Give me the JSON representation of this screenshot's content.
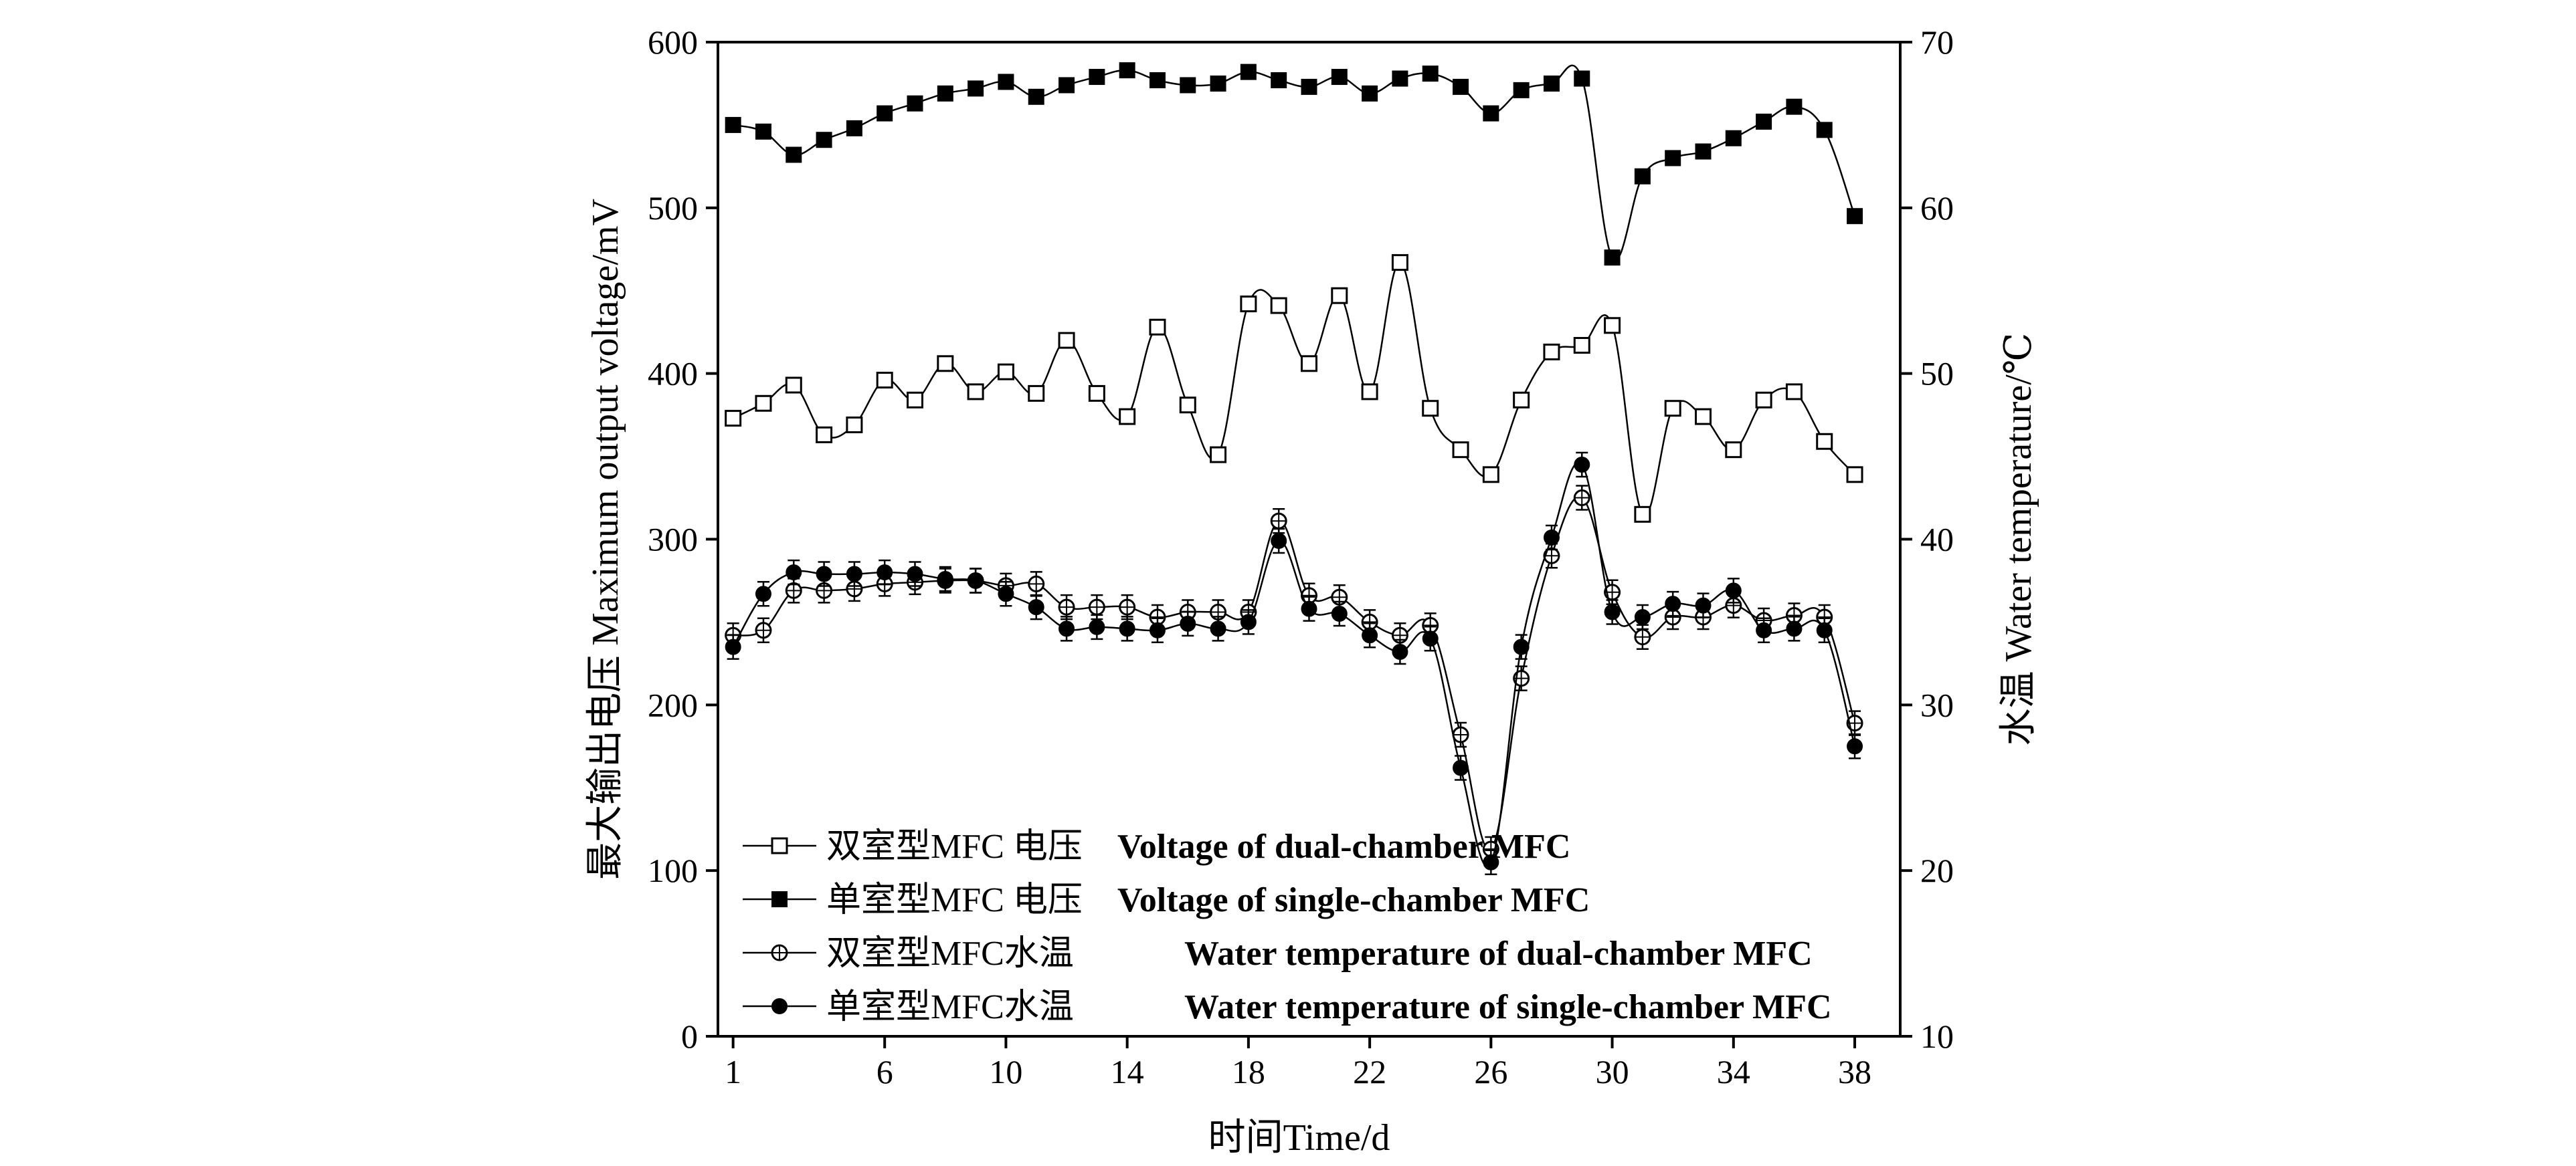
{
  "chart_data": {
    "type": "line",
    "x_axis": {
      "label": "时间Time/d",
      "range": [
        0.5,
        39.5
      ],
      "ticks": [
        1,
        6,
        10,
        14,
        18,
        22,
        26,
        30,
        34,
        38
      ]
    },
    "y_left": {
      "label": "最大输出电压 Maximum output voltage/mV",
      "range": [
        0,
        600
      ],
      "ticks": [
        0,
        100,
        200,
        300,
        400,
        500,
        600
      ]
    },
    "y_right": {
      "label": "水温 Water temperature/℃",
      "range": [
        10,
        70
      ],
      "ticks": [
        10,
        20,
        30,
        40,
        50,
        60,
        70
      ]
    },
    "series": [
      {
        "name": "双室型MFC 电压 Voltage of dual-chamber MFC",
        "axis": "left",
        "marker": "open-square",
        "x": [
          1,
          2,
          3,
          4,
          5,
          6,
          7,
          8,
          9,
          10,
          11,
          12,
          13,
          14,
          15,
          16,
          17,
          18,
          19,
          20,
          21,
          22,
          23,
          24,
          25,
          26,
          27,
          28,
          29,
          30,
          31,
          32,
          33,
          34,
          35,
          36,
          37,
          38
        ],
        "values": [
          373,
          382,
          393,
          363,
          369,
          396,
          384,
          406,
          389,
          401,
          388,
          420,
          388,
          374,
          428,
          381,
          351,
          442,
          441,
          406,
          447,
          389,
          467,
          379,
          354,
          339,
          384,
          413,
          417,
          429,
          315,
          379,
          374,
          354,
          384,
          389,
          359,
          339
        ]
      },
      {
        "name": "单室型MFC 电压 Voltage of single-chamber MFC",
        "axis": "left",
        "marker": "filled-square",
        "x": [
          1,
          2,
          3,
          4,
          5,
          6,
          7,
          8,
          9,
          10,
          11,
          12,
          13,
          14,
          15,
          16,
          17,
          18,
          19,
          20,
          21,
          22,
          23,
          24,
          25,
          26,
          27,
          28,
          29,
          30,
          31,
          32,
          33,
          34,
          35,
          36,
          37,
          38
        ],
        "values": [
          550,
          546,
          532,
          541,
          548,
          557,
          563,
          569,
          572,
          576,
          567,
          574,
          579,
          583,
          577,
          574,
          575,
          582,
          577,
          573,
          579,
          569,
          578,
          581,
          573,
          557,
          571,
          575,
          578,
          470,
          519,
          530,
          534,
          542,
          552,
          561,
          547,
          495
        ]
      },
      {
        "name": "双室型MFC水温 Water temperature of dual-chamber MFC",
        "axis": "right",
        "marker": "open-circle-cross",
        "x": [
          1,
          2,
          3,
          4,
          5,
          6,
          7,
          8,
          9,
          10,
          11,
          12,
          13,
          14,
          15,
          16,
          17,
          18,
          19,
          20,
          21,
          22,
          23,
          24,
          25,
          26,
          27,
          28,
          29,
          30,
          31,
          32,
          33,
          34,
          35,
          36,
          37,
          38
        ],
        "values": [
          34.2,
          34.5,
          36.9,
          36.9,
          37.0,
          37.3,
          37.4,
          37.5,
          37.5,
          37.2,
          37.3,
          35.9,
          35.9,
          35.9,
          35.3,
          35.6,
          35.6,
          35.6,
          41.1,
          36.6,
          36.5,
          35.0,
          34.2,
          34.8,
          28.2,
          21.3,
          31.6,
          39.0,
          42.5,
          36.8,
          34.1,
          35.3,
          35.3,
          36.0,
          35.1,
          35.4,
          35.3,
          28.9
        ]
      },
      {
        "name": "单室型MFC水温 Water temperature of single-chamber MFC",
        "axis": "right",
        "marker": "filled-circle",
        "x": [
          1,
          2,
          3,
          4,
          5,
          6,
          7,
          8,
          9,
          10,
          11,
          12,
          13,
          14,
          15,
          16,
          17,
          18,
          19,
          20,
          21,
          22,
          23,
          24,
          25,
          26,
          27,
          28,
          29,
          30,
          31,
          32,
          33,
          34,
          35,
          36,
          37,
          38
        ],
        "values": [
          33.5,
          36.7,
          38.0,
          37.9,
          37.9,
          38.0,
          37.9,
          37.6,
          37.5,
          36.7,
          35.9,
          34.6,
          34.7,
          34.6,
          34.5,
          34.9,
          34.6,
          35.0,
          39.9,
          35.8,
          35.5,
          34.2,
          33.2,
          34.0,
          26.2,
          20.5,
          33.5,
          40.1,
          44.5,
          35.6,
          35.3,
          36.1,
          36.0,
          36.9,
          34.5,
          34.6,
          34.5,
          27.5
        ]
      }
    ],
    "legend": {
      "placement": "lower-left",
      "entries": [
        {
          "zh": "双室型MFC 电压",
          "en": "Voltage of dual-chamber MFC",
          "marker": "open-square"
        },
        {
          "zh": "单室型MFC 电压",
          "en": "Voltage of single-chamber MFC",
          "marker": "filled-square"
        },
        {
          "zh": "双室型MFC水温",
          "en": "Water temperature of dual-chamber MFC",
          "marker": "open-circle-cross"
        },
        {
          "zh": "单室型MFC水温",
          "en": "Water temperature of single-chamber MFC",
          "marker": "filled-circle"
        }
      ]
    }
  }
}
